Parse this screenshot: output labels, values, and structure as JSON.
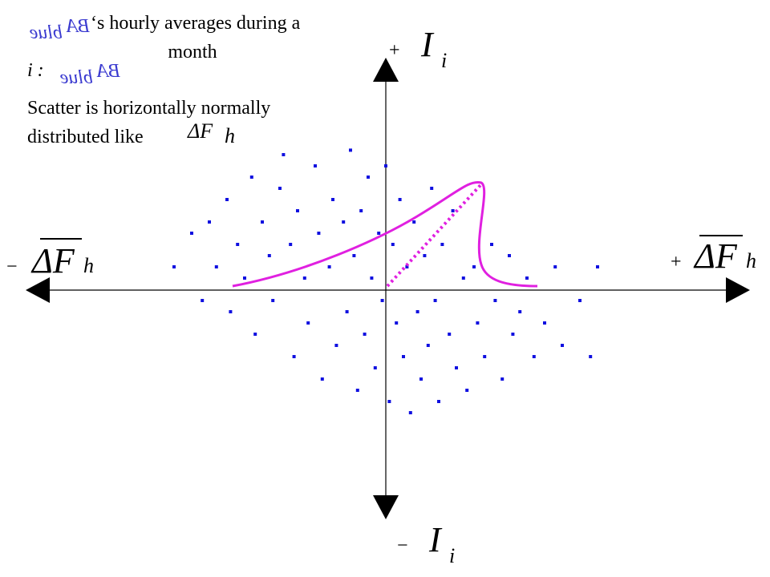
{
  "header": {
    "symbol": "BA",
    "subscript": "blue",
    "lines": [
      "‘s hourly averages during a",
      "month"
    ]
  },
  "legend_line": {
    "prefix": "i :",
    "symbol": "BA",
    "subscript": "blue"
  },
  "note": {
    "lines": [
      "Scatter is horizontally normally",
      "distributed like"
    ],
    "symbol": "ΔF",
    "subscript": "h"
  },
  "axes": {
    "top": {
      "sign": "+",
      "symbol": "I",
      "subscript": "i"
    },
    "bottom": {
      "sign": "−",
      "symbol": "I",
      "subscript": "i"
    },
    "left": {
      "sign": "−",
      "symbol": "ΔF",
      "subscript": "h"
    },
    "right": {
      "sign": "+",
      "symbol": "ΔF",
      "subscript": "h"
    }
  },
  "chart_data": {
    "type": "scatter",
    "color": "#1010e0",
    "x": [
      -0.6,
      -0.55,
      -0.52,
      -0.5,
      -0.48,
      -0.45,
      -0.44,
      -0.42,
      -0.4,
      -0.38,
      -0.37,
      -0.35,
      -0.33,
      -0.32,
      -0.3,
      -0.29,
      -0.27,
      -0.26,
      -0.25,
      -0.23,
      -0.22,
      -0.2,
      -0.19,
      -0.18,
      -0.16,
      -0.15,
      -0.14,
      -0.12,
      -0.11,
      -0.1,
      -0.09,
      -0.08,
      -0.07,
      -0.06,
      -0.05,
      -0.04,
      -0.03,
      -0.02,
      -0.01,
      0,
      0.01,
      0.02,
      0.03,
      0.04,
      0.05,
      0.06,
      0.07,
      0.08,
      0.09,
      0.1,
      0.11,
      0.12,
      0.13,
      0.14,
      0.15,
      0.16,
      0.18,
      0.19,
      0.2,
      0.22,
      0.23,
      0.25,
      0.26,
      0.28,
      0.3,
      0.31,
      0.33,
      0.35,
      0.36,
      0.38,
      0.4,
      0.42,
      0.45,
      0.48,
      0.5,
      0.55,
      0.58,
      0.6
    ],
    "y": [
      0.1,
      0.25,
      -0.05,
      0.3,
      0.1,
      0.4,
      -0.1,
      0.2,
      0.05,
      0.5,
      -0.2,
      0.3,
      0.15,
      -0.05,
      0.45,
      0.6,
      0.2,
      -0.3,
      0.35,
      0.05,
      -0.15,
      0.55,
      0.25,
      -0.4,
      0.1,
      0.4,
      -0.25,
      0.3,
      -0.1,
      0.62,
      0.15,
      -0.45,
      0.35,
      -0.2,
      0.5,
      0.05,
      -0.35,
      0.25,
      -0.05,
      0.55,
      -0.5,
      0.2,
      -0.15,
      0.4,
      -0.3,
      0.1,
      -0.55,
      0.3,
      -0.1,
      -0.4,
      0.15,
      -0.25,
      0.45,
      -0.05,
      -0.5,
      0.2,
      -0.2,
      0.35,
      -0.35,
      0.05,
      -0.45,
      0.1,
      -0.15,
      -0.3,
      0.2,
      -0.05,
      -0.4,
      0.15,
      -0.2,
      -0.1,
      0.05,
      -0.3,
      -0.15,
      0.1,
      -0.25,
      -0.05,
      -0.3,
      0.1
    ],
    "xlim": [
      -1,
      1
    ],
    "ylim": [
      -1,
      1
    ]
  }
}
